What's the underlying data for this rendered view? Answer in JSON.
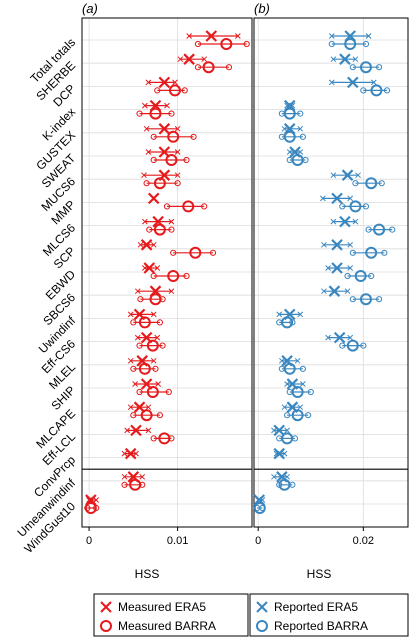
{
  "chart_data": {
    "type": "scatter",
    "categories": [
      "Total totals",
      "SHERBE",
      "DCP",
      "K-index",
      "GUSTEX",
      "SWEAT",
      "MUCS6",
      "MMP",
      "MLCS6",
      "SCP",
      "EBWD",
      "SBCS6",
      "Uwindinf",
      "Eff-CS6",
      "MLEL",
      "SHIP",
      "MLCAPE",
      "Eff-LCL",
      "ConvPrcp",
      "Umeanwindinf",
      "WindGust10"
    ],
    "colors": {
      "red": "#e41a1c",
      "blue": "#3a87c0"
    },
    "panels": [
      {
        "label": "(a)",
        "xlabel": "HSS",
        "xlim": [
          -0.0008,
          0.0184
        ],
        "xticks": [
          0,
          0.01
        ],
        "xtick_labels": [
          "0",
          "0.01"
        ],
        "color": "#e41a1c",
        "series": [
          {
            "name": "Measured ERA5",
            "marker": "cross",
            "low": [
              0.0113,
              0.0103,
              0.0067,
              0.0063,
              0.0065,
              0.0067,
              0.0062,
              0.0073,
              0.0063,
              0.0058,
              0.0063,
              0.0055,
              0.0047,
              0.0055,
              0.0047,
              0.0052,
              0.0047,
              0.0043,
              0.004,
              0.004,
              0.0
            ],
            "mid": [
              0.0138,
              0.0113,
              0.0085,
              0.0075,
              0.0085,
              0.0085,
              0.0085,
              0.0073,
              0.0078,
              0.0065,
              0.0068,
              0.0075,
              0.0057,
              0.0065,
              0.006,
              0.0065,
              0.0057,
              0.0053,
              0.0047,
              0.005,
              0.0002
            ],
            "high": [
              0.0168,
              0.013,
              0.0097,
              0.0088,
              0.01,
              0.01,
              0.01,
              0.0073,
              0.0093,
              0.0073,
              0.0077,
              0.0093,
              0.0073,
              0.0077,
              0.0073,
              0.0078,
              0.0067,
              0.0067,
              0.0053,
              0.006,
              0.0008
            ]
          },
          {
            "name": "Measured BARRA",
            "marker": "circle",
            "low": [
              0.0123,
              0.0123,
              0.0077,
              0.0057,
              0.0073,
              0.0073,
              0.0065,
              0.0088,
              0.0068,
              0.0095,
              0.0073,
              0.0058,
              0.005,
              0.0057,
              0.005,
              0.0057,
              0.005,
              0.0073,
              null,
              0.004,
              -0.0002
            ],
            "mid": [
              0.0155,
              0.0135,
              0.0097,
              0.0075,
              0.0095,
              0.0093,
              0.008,
              0.0112,
              0.008,
              0.012,
              0.0095,
              0.0075,
              0.0063,
              0.0072,
              0.0063,
              0.0072,
              0.0065,
              0.0085,
              null,
              0.0052,
              0.0002
            ],
            "high": [
              0.0178,
              0.0158,
              0.0108,
              0.0093,
              0.0118,
              0.011,
              0.01,
              0.013,
              0.0093,
              0.014,
              0.011,
              0.0083,
              0.008,
              0.0083,
              0.0075,
              0.009,
              0.008,
              0.0093,
              null,
              0.006,
              0.0008
            ]
          }
        ]
      },
      {
        "label": "(b)",
        "xlabel": "HSS",
        "xlim": [
          -0.0008,
          0.0285
        ],
        "xticks": [
          0,
          0.02
        ],
        "xtick_labels": [
          "0",
          "0.02"
        ],
        "color": "#3a87c0",
        "series": [
          {
            "name": "Reported ERA5",
            "marker": "cross",
            "low": [
              0.014,
              0.0143,
              0.014,
              0.0055,
              0.005,
              0.006,
              0.0143,
              0.0123,
              0.0143,
              0.0125,
              0.0133,
              0.0125,
              0.004,
              0.0133,
              0.0045,
              0.0055,
              0.005,
              0.003,
              0.0035,
              0.003,
              0.0
            ],
            "mid": [
              0.0175,
              0.0165,
              0.018,
              0.006,
              0.006,
              0.007,
              0.017,
              0.015,
              0.0165,
              0.015,
              0.015,
              0.0145,
              0.006,
              0.0155,
              0.0055,
              0.0065,
              0.0065,
              0.004,
              0.004,
              0.0045,
              0.0002
            ],
            "high": [
              0.021,
              0.0185,
              0.022,
              0.0065,
              0.008,
              0.008,
              0.019,
              0.0175,
              0.0185,
              0.0175,
              0.0175,
              0.017,
              0.008,
              0.0175,
              0.0075,
              0.0085,
              0.008,
              0.0055,
              0.005,
              0.0055,
              0.0008
            ]
          },
          {
            "name": "Reported BARRA",
            "marker": "circle",
            "low": [
              0.014,
              0.018,
              0.02,
              0.0045,
              0.0045,
              0.006,
              0.0185,
              0.016,
              0.021,
              0.018,
              0.017,
              0.018,
              0.004,
              0.016,
              0.0045,
              0.006,
              0.0055,
              0.004,
              null,
              0.004,
              -0.0002
            ],
            "mid": [
              0.0175,
              0.0205,
              0.0225,
              0.006,
              0.006,
              0.0075,
              0.0215,
              0.0185,
              0.023,
              0.0215,
              0.0195,
              0.0205,
              0.0055,
              0.018,
              0.006,
              0.0075,
              0.0075,
              0.0055,
              null,
              0.005,
              0.0003
            ],
            "high": [
              0.0205,
              0.023,
              0.0245,
              0.008,
              0.0085,
              0.009,
              0.0235,
              0.0205,
              0.0255,
              0.024,
              0.0215,
              0.023,
              0.0065,
              0.02,
              0.0085,
              0.01,
              0.0095,
              0.007,
              null,
              0.0065,
              0.0008
            ]
          }
        ]
      }
    ],
    "separator_after_index": 18,
    "legend": {
      "placement": "bottom"
    }
  }
}
